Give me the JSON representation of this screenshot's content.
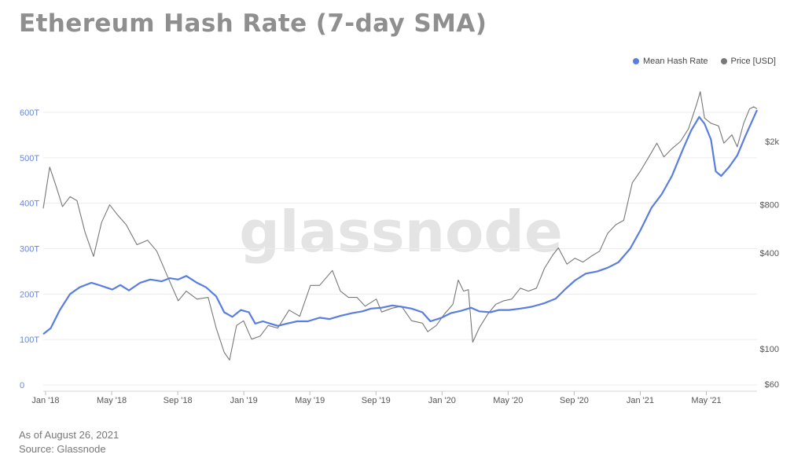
{
  "title": "Ethereum Hash Rate (7-day SMA)",
  "watermark": "glassnode",
  "legend": [
    {
      "label": "Mean Hash Rate",
      "color": "#5a7de0"
    },
    {
      "label": "Price [USD]",
      "color": "#777777"
    }
  ],
  "footer": {
    "as_of": "As of August 26, 2021",
    "source": "Source: Glassnode"
  },
  "chart_data": {
    "type": "line",
    "x_ticks": [
      "Jan '18",
      "May '18",
      "Sep '18",
      "Jan '19",
      "May '19",
      "Sep '19",
      "Jan '20",
      "May '20",
      "Sep '20",
      "Jan '21",
      "May '21"
    ],
    "y_left_ticks": [
      "0",
      "100T",
      "200T",
      "300T",
      "400T",
      "500T",
      "600T"
    ],
    "y_left_values": [
      0,
      100,
      200,
      300,
      400,
      500,
      600
    ],
    "y_left_unit": "TH/s",
    "y_right_ticks": [
      "$60",
      "$100",
      "$400",
      "$800",
      "$2k"
    ],
    "y_right_values": [
      60,
      100,
      400,
      800,
      2000
    ],
    "y_right_scale": "log",
    "x_start": "2018-01-01",
    "x_end": "2021-08-26",
    "grid": true,
    "legend_position": "top-right",
    "series": [
      {
        "name": "Mean Hash Rate",
        "axis": "left",
        "color": "#5a7de0",
        "points": [
          [
            "2018-01-01",
            112
          ],
          [
            "2018-01-15",
            125
          ],
          [
            "2018-02-01",
            165
          ],
          [
            "2018-02-20",
            200
          ],
          [
            "2018-03-10",
            215
          ],
          [
            "2018-04-01",
            225
          ],
          [
            "2018-04-20",
            218
          ],
          [
            "2018-05-10",
            210
          ],
          [
            "2018-05-25",
            220
          ],
          [
            "2018-06-10",
            208
          ],
          [
            "2018-07-01",
            225
          ],
          [
            "2018-07-20",
            232
          ],
          [
            "2018-08-10",
            228
          ],
          [
            "2018-08-25",
            235
          ],
          [
            "2018-09-10",
            232
          ],
          [
            "2018-09-25",
            240
          ],
          [
            "2018-10-15",
            225
          ],
          [
            "2018-11-01",
            215
          ],
          [
            "2018-11-20",
            195
          ],
          [
            "2018-12-05",
            160
          ],
          [
            "2018-12-20",
            150
          ],
          [
            "2019-01-05",
            165
          ],
          [
            "2019-01-20",
            160
          ],
          [
            "2019-02-01",
            135
          ],
          [
            "2019-02-15",
            140
          ],
          [
            "2019-03-01",
            135
          ],
          [
            "2019-03-15",
            130
          ],
          [
            "2019-04-01",
            135
          ],
          [
            "2019-04-20",
            140
          ],
          [
            "2019-05-10",
            140
          ],
          [
            "2019-06-01",
            148
          ],
          [
            "2019-06-20",
            145
          ],
          [
            "2019-07-10",
            152
          ],
          [
            "2019-08-01",
            158
          ],
          [
            "2019-08-20",
            162
          ],
          [
            "2019-09-05",
            168
          ],
          [
            "2019-09-25",
            170
          ],
          [
            "2019-10-15",
            175
          ],
          [
            "2019-11-01",
            172
          ],
          [
            "2019-11-20",
            168
          ],
          [
            "2019-12-10",
            160
          ],
          [
            "2019-12-25",
            140
          ],
          [
            "2020-01-15",
            148
          ],
          [
            "2020-02-01",
            158
          ],
          [
            "2020-02-20",
            163
          ],
          [
            "2020-03-10",
            170
          ],
          [
            "2020-03-25",
            162
          ],
          [
            "2020-04-15",
            160
          ],
          [
            "2020-05-01",
            165
          ],
          [
            "2020-05-20",
            165
          ],
          [
            "2020-06-10",
            168
          ],
          [
            "2020-07-01",
            172
          ],
          [
            "2020-07-25",
            180
          ],
          [
            "2020-08-15",
            190
          ],
          [
            "2020-09-01",
            210
          ],
          [
            "2020-09-20",
            230
          ],
          [
            "2020-10-10",
            245
          ],
          [
            "2020-11-01",
            250
          ],
          [
            "2020-11-20",
            258
          ],
          [
            "2020-12-10",
            270
          ],
          [
            "2021-01-01",
            300
          ],
          [
            "2021-01-20",
            340
          ],
          [
            "2021-02-10",
            390
          ],
          [
            "2021-03-01",
            420
          ],
          [
            "2021-03-20",
            460
          ],
          [
            "2021-04-10",
            520
          ],
          [
            "2021-04-25",
            560
          ],
          [
            "2021-05-10",
            590
          ],
          [
            "2021-05-20",
            575
          ],
          [
            "2021-06-01",
            540
          ],
          [
            "2021-06-10",
            470
          ],
          [
            "2021-06-20",
            460
          ],
          [
            "2021-07-05",
            480
          ],
          [
            "2021-07-20",
            505
          ],
          [
            "2021-08-05",
            550
          ],
          [
            "2021-08-26",
            605
          ]
        ]
      },
      {
        "name": "Price [USD]",
        "axis": "right",
        "color": "#777777",
        "points": [
          [
            "2018-01-01",
            760
          ],
          [
            "2018-01-13",
            1380
          ],
          [
            "2018-01-25",
            1050
          ],
          [
            "2018-02-06",
            780
          ],
          [
            "2018-02-20",
            900
          ],
          [
            "2018-03-05",
            850
          ],
          [
            "2018-03-20",
            540
          ],
          [
            "2018-04-05",
            380
          ],
          [
            "2018-04-20",
            620
          ],
          [
            "2018-05-05",
            800
          ],
          [
            "2018-05-20",
            690
          ],
          [
            "2018-06-05",
            600
          ],
          [
            "2018-06-25",
            450
          ],
          [
            "2018-07-15",
            480
          ],
          [
            "2018-08-01",
            410
          ],
          [
            "2018-08-20",
            290
          ],
          [
            "2018-09-10",
            200
          ],
          [
            "2018-09-25",
            230
          ],
          [
            "2018-10-15",
            205
          ],
          [
            "2018-11-05",
            210
          ],
          [
            "2018-11-20",
            135
          ],
          [
            "2018-12-05",
            95
          ],
          [
            "2018-12-15",
            85
          ],
          [
            "2018-12-28",
            140
          ],
          [
            "2019-01-10",
            150
          ],
          [
            "2019-01-25",
            115
          ],
          [
            "2019-02-10",
            120
          ],
          [
            "2019-02-25",
            140
          ],
          [
            "2019-03-15",
            135
          ],
          [
            "2019-04-05",
            175
          ],
          [
            "2019-04-25",
            160
          ],
          [
            "2019-05-15",
            250
          ],
          [
            "2019-06-01",
            250
          ],
          [
            "2019-06-25",
            310
          ],
          [
            "2019-07-10",
            230
          ],
          [
            "2019-07-25",
            210
          ],
          [
            "2019-08-10",
            210
          ],
          [
            "2019-08-25",
            185
          ],
          [
            "2019-09-15",
            205
          ],
          [
            "2019-09-25",
            170
          ],
          [
            "2019-10-15",
            180
          ],
          [
            "2019-11-01",
            185
          ],
          [
            "2019-11-20",
            150
          ],
          [
            "2019-12-10",
            145
          ],
          [
            "2019-12-20",
            128
          ],
          [
            "2020-01-05",
            140
          ],
          [
            "2020-01-20",
            165
          ],
          [
            "2020-02-05",
            190
          ],
          [
            "2020-02-15",
            270
          ],
          [
            "2020-02-25",
            230
          ],
          [
            "2020-03-05",
            235
          ],
          [
            "2020-03-13",
            110
          ],
          [
            "2020-03-25",
            135
          ],
          [
            "2020-04-10",
            165
          ],
          [
            "2020-04-25",
            190
          ],
          [
            "2020-05-10",
            200
          ],
          [
            "2020-05-25",
            205
          ],
          [
            "2020-06-10",
            240
          ],
          [
            "2020-06-25",
            230
          ],
          [
            "2020-07-10",
            240
          ],
          [
            "2020-07-25",
            320
          ],
          [
            "2020-08-10",
            390
          ],
          [
            "2020-08-20",
            430
          ],
          [
            "2020-09-05",
            340
          ],
          [
            "2020-09-20",
            370
          ],
          [
            "2020-10-05",
            350
          ],
          [
            "2020-10-20",
            380
          ],
          [
            "2020-11-05",
            410
          ],
          [
            "2020-11-20",
            530
          ],
          [
            "2020-12-05",
            600
          ],
          [
            "2020-12-20",
            640
          ],
          [
            "2021-01-05",
            1100
          ],
          [
            "2021-01-20",
            1300
          ],
          [
            "2021-02-05",
            1600
          ],
          [
            "2021-02-20",
            1950
          ],
          [
            "2021-03-05",
            1600
          ],
          [
            "2021-03-20",
            1800
          ],
          [
            "2021-04-05",
            2000
          ],
          [
            "2021-04-20",
            2400
          ],
          [
            "2021-05-05",
            3400
          ],
          [
            "2021-05-12",
            4100
          ],
          [
            "2021-05-20",
            2800
          ],
          [
            "2021-06-01",
            2600
          ],
          [
            "2021-06-15",
            2500
          ],
          [
            "2021-06-25",
            1950
          ],
          [
            "2021-07-10",
            2200
          ],
          [
            "2021-07-20",
            1850
          ],
          [
            "2021-08-01",
            2600
          ],
          [
            "2021-08-12",
            3200
          ],
          [
            "2021-08-20",
            3300
          ],
          [
            "2021-08-26",
            3200
          ]
        ]
      }
    ]
  }
}
